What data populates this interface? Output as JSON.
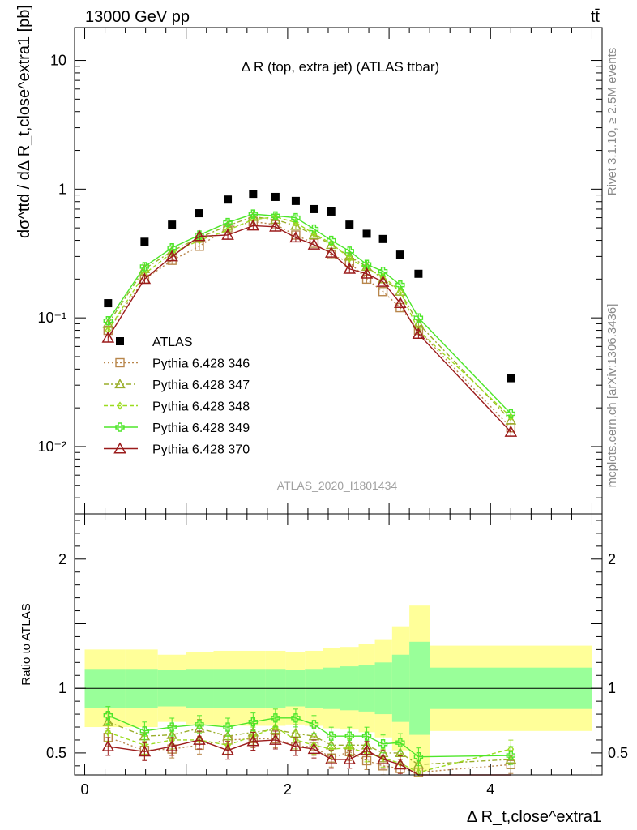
{
  "header": {
    "left": "13000 GeV pp",
    "right": "tt̄"
  },
  "side_labels": {
    "rivet": "Rivet 3.1.10, ≥ 2.5M events",
    "mcplots": "mcplots.cern.ch [arXiv:1306.3436]"
  },
  "chart_data": {
    "type": "scatter",
    "title": "Δ R (top, extra jet) (ATLAS ttbar)",
    "analysis_tag": "ATLAS_2020_I1801434",
    "ylabel": "dσ^ttd / dΔ R_t,close^extra1 [pb]",
    "xlabel": "Δ R_t,close^extra1",
    "ratio_ylabel": "Ratio to ATLAS",
    "xlim": [
      -0.1,
      5.1
    ],
    "ylim": [
      0.003,
      18
    ],
    "yscale": "log",
    "ratio_ylim": [
      0.33,
      2.35
    ],
    "x_ticks": [
      0,
      2,
      4
    ],
    "y_ticks": [
      0.01,
      0.1,
      1,
      10
    ],
    "y_tick_labels": [
      "10⁻²",
      "10⁻¹",
      "1",
      "10"
    ],
    "ratio_ticks": [
      0.5,
      1,
      2
    ],
    "ratio_tick_labels": [
      "0.5",
      "1",
      "2"
    ],
    "legend_position": "lower-left",
    "x": [
      0.23,
      0.59,
      0.86,
      1.13,
      1.41,
      1.66,
      1.88,
      2.08,
      2.26,
      2.43,
      2.61,
      2.78,
      2.94,
      3.11,
      3.29,
      4.2
    ],
    "bin_edges": [
      0.0,
      0.4,
      0.72,
      1.0,
      1.27,
      1.55,
      1.78,
      1.98,
      2.17,
      2.35,
      2.52,
      2.7,
      2.86,
      3.03,
      3.2,
      3.4,
      5.0
    ],
    "atlas": {
      "name": "ATLAS",
      "values": [
        0.13,
        0.39,
        0.53,
        0.65,
        0.83,
        0.92,
        0.87,
        0.81,
        0.7,
        0.67,
        0.53,
        0.45,
        0.41,
        0.31,
        0.22,
        0.034
      ],
      "band_outer": [
        0.3,
        0.3,
        0.26,
        0.28,
        0.29,
        0.29,
        0.29,
        0.28,
        0.29,
        0.31,
        0.32,
        0.34,
        0.38,
        0.48,
        0.64,
        0.33
      ],
      "band_inner": [
        0.15,
        0.15,
        0.14,
        0.15,
        0.15,
        0.15,
        0.15,
        0.14,
        0.15,
        0.16,
        0.17,
        0.18,
        0.2,
        0.26,
        0.36,
        0.16
      ]
    },
    "series": [
      {
        "name": "Pythia 6.428 346",
        "color": "#b8864b",
        "dash": "2,3",
        "marker": "square",
        "values": [
          0.08,
          0.2,
          0.28,
          0.36,
          0.5,
          0.56,
          0.53,
          0.44,
          0.38,
          0.31,
          0.27,
          0.2,
          0.16,
          0.12,
          0.08,
          0.014
        ],
        "ratio": [
          0.62,
          0.52,
          0.53,
          0.56,
          0.6,
          0.61,
          0.61,
          0.55,
          0.55,
          0.46,
          0.51,
          0.44,
          0.4,
          0.38,
          0.35,
          0.41
        ]
      },
      {
        "name": "Pythia 6.428 347",
        "color": "#9aae2a",
        "dash": "6,3,2,3",
        "marker": "triangle",
        "values": [
          0.09,
          0.24,
          0.33,
          0.42,
          0.52,
          0.61,
          0.58,
          0.52,
          0.44,
          0.37,
          0.3,
          0.25,
          0.2,
          0.16,
          0.09,
          0.016
        ],
        "ratio": [
          0.74,
          0.63,
          0.64,
          0.69,
          0.63,
          0.66,
          0.68,
          0.65,
          0.63,
          0.56,
          0.56,
          0.56,
          0.5,
          0.5,
          0.41,
          0.45
        ]
      },
      {
        "name": "Pythia 6.428 348",
        "color": "#9bdc1f",
        "dash": "5,3",
        "marker": "diamond",
        "values": [
          0.08,
          0.22,
          0.32,
          0.4,
          0.48,
          0.58,
          0.61,
          0.55,
          0.45,
          0.38,
          0.29,
          0.24,
          0.21,
          0.16,
          0.08,
          0.017
        ],
        "ratio": [
          0.66,
          0.56,
          0.6,
          0.6,
          0.56,
          0.63,
          0.7,
          0.6,
          0.56,
          0.53,
          0.54,
          0.5,
          0.46,
          0.42,
          0.35,
          0.53
        ]
      },
      {
        "name": "Pythia 6.428 349",
        "color": "#4ee62a",
        "dash": "",
        "marker": "cross",
        "values": [
          0.095,
          0.25,
          0.35,
          0.44,
          0.55,
          0.64,
          0.62,
          0.6,
          0.49,
          0.4,
          0.33,
          0.26,
          0.23,
          0.18,
          0.1,
          0.018
        ],
        "ratio": [
          0.79,
          0.67,
          0.7,
          0.72,
          0.7,
          0.74,
          0.77,
          0.77,
          0.72,
          0.63,
          0.63,
          0.63,
          0.57,
          0.58,
          0.47,
          0.48
        ]
      },
      {
        "name": "Pythia 6.428 370",
        "color": "#9b1b1b",
        "dash": "",
        "marker": "triangle-open",
        "values": [
          0.07,
          0.2,
          0.3,
          0.43,
          0.44,
          0.52,
          0.51,
          0.42,
          0.37,
          0.32,
          0.24,
          0.22,
          0.19,
          0.13,
          0.075,
          0.013
        ],
        "ratio": [
          0.55,
          0.51,
          0.55,
          0.6,
          0.52,
          0.59,
          0.6,
          0.55,
          0.53,
          0.45,
          0.45,
          0.52,
          0.45,
          0.41,
          0.3,
          0.3
        ]
      }
    ]
  }
}
